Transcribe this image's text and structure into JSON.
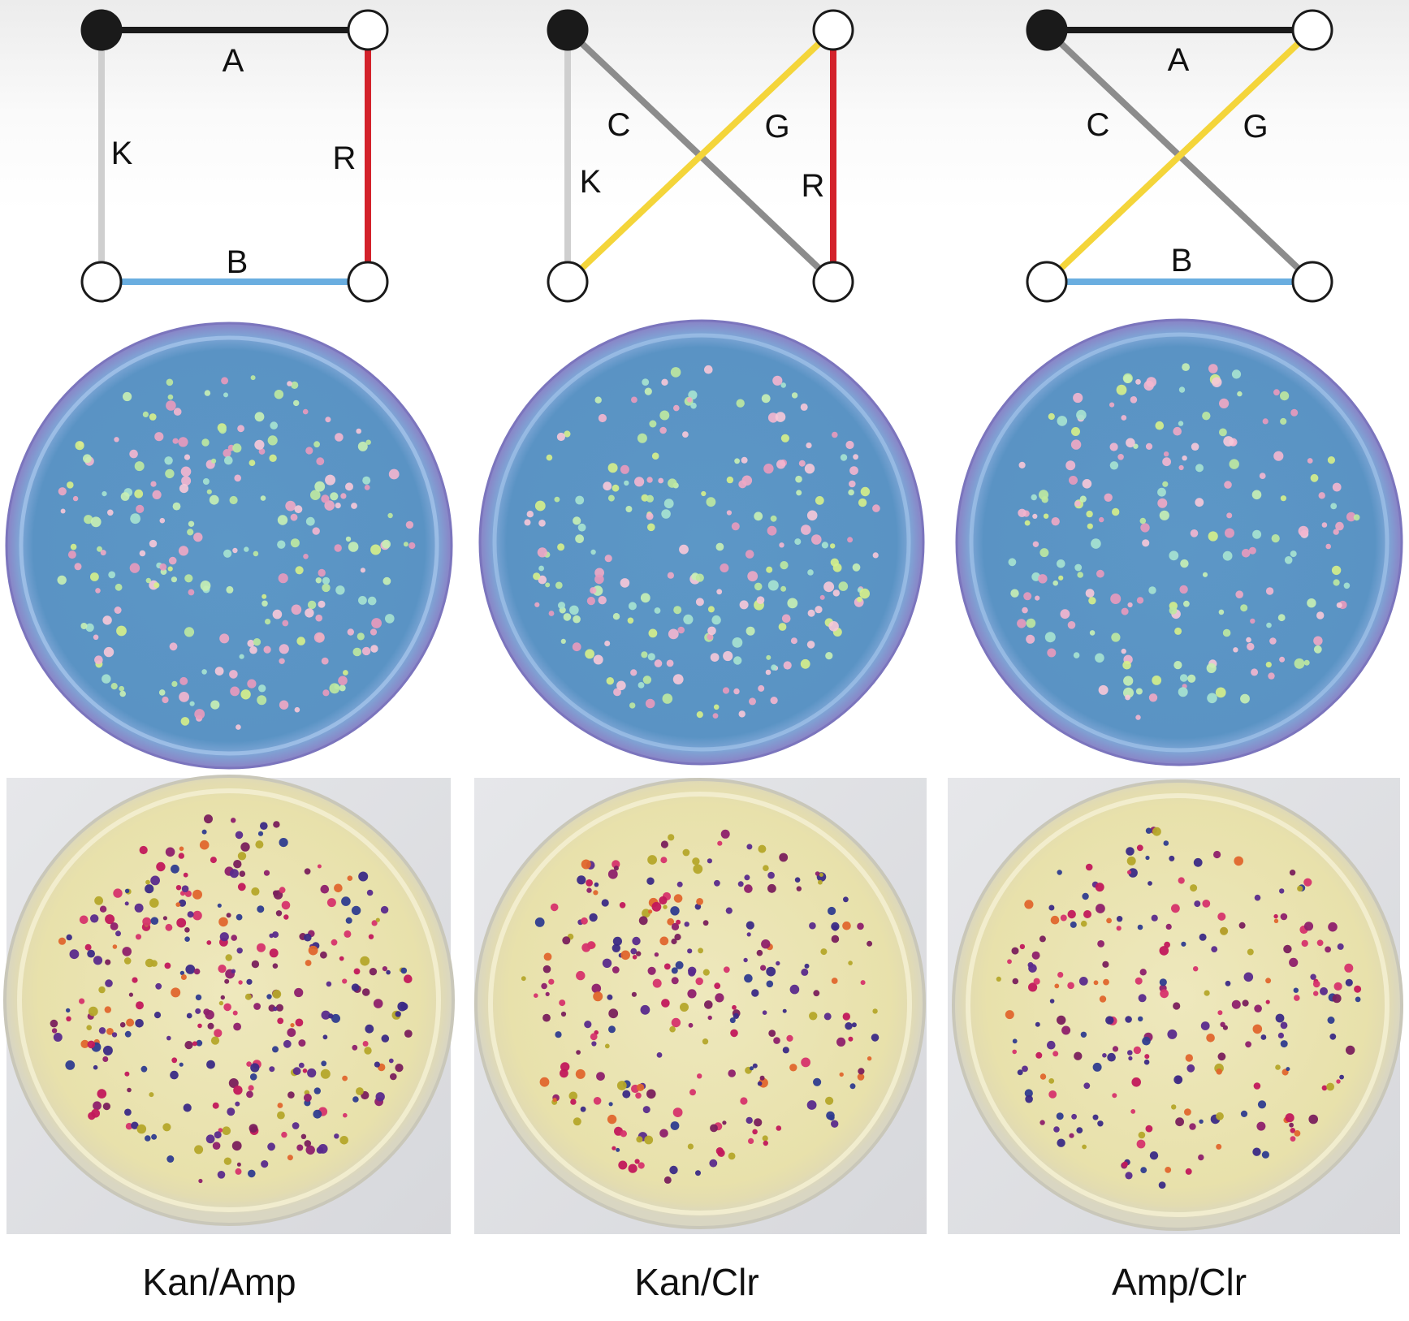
{
  "panels": [
    {
      "caption": "Kan/Amp",
      "graph": {
        "edges": [
          {
            "label": "A",
            "color": "#1a1a1a"
          },
          {
            "label": "K",
            "color": "#cfcfcf"
          },
          {
            "label": "R",
            "color": "#d3222b"
          },
          {
            "label": "B",
            "color": "#6aaee0"
          }
        ]
      },
      "fluorescent_plate": {
        "colony_count": 230
      },
      "brightfield_plate": {
        "colony_count": 320
      }
    },
    {
      "caption": "Kan/Clr",
      "graph": {
        "edges": [
          {
            "label": "C",
            "color": "#8c8c8c"
          },
          {
            "label": "G",
            "color": "#f4d53a"
          },
          {
            "label": "K",
            "color": "#cfcfcf"
          },
          {
            "label": "R",
            "color": "#d3222b"
          }
        ]
      },
      "fluorescent_plate": {
        "colony_count": 220
      },
      "brightfield_plate": {
        "colony_count": 260
      }
    },
    {
      "caption": "Amp/Clr",
      "graph": {
        "edges": [
          {
            "label": "A",
            "color": "#1a1a1a"
          },
          {
            "label": "C",
            "color": "#8c8c8c"
          },
          {
            "label": "G",
            "color": "#f4d53a"
          },
          {
            "label": "B",
            "color": "#6aaee0"
          }
        ]
      },
      "fluorescent_plate": {
        "colony_count": 200
      },
      "brightfield_plate": {
        "colony_count": 230
      }
    }
  ],
  "colors": {
    "fluor_agar": "#5a93c4",
    "fluor_rim": "#8a83c6",
    "bright_agar": "#ece6b4",
    "bright_background": "#dedfe3",
    "filled_node": "#1a1a1a",
    "open_node": "#ffffff"
  }
}
